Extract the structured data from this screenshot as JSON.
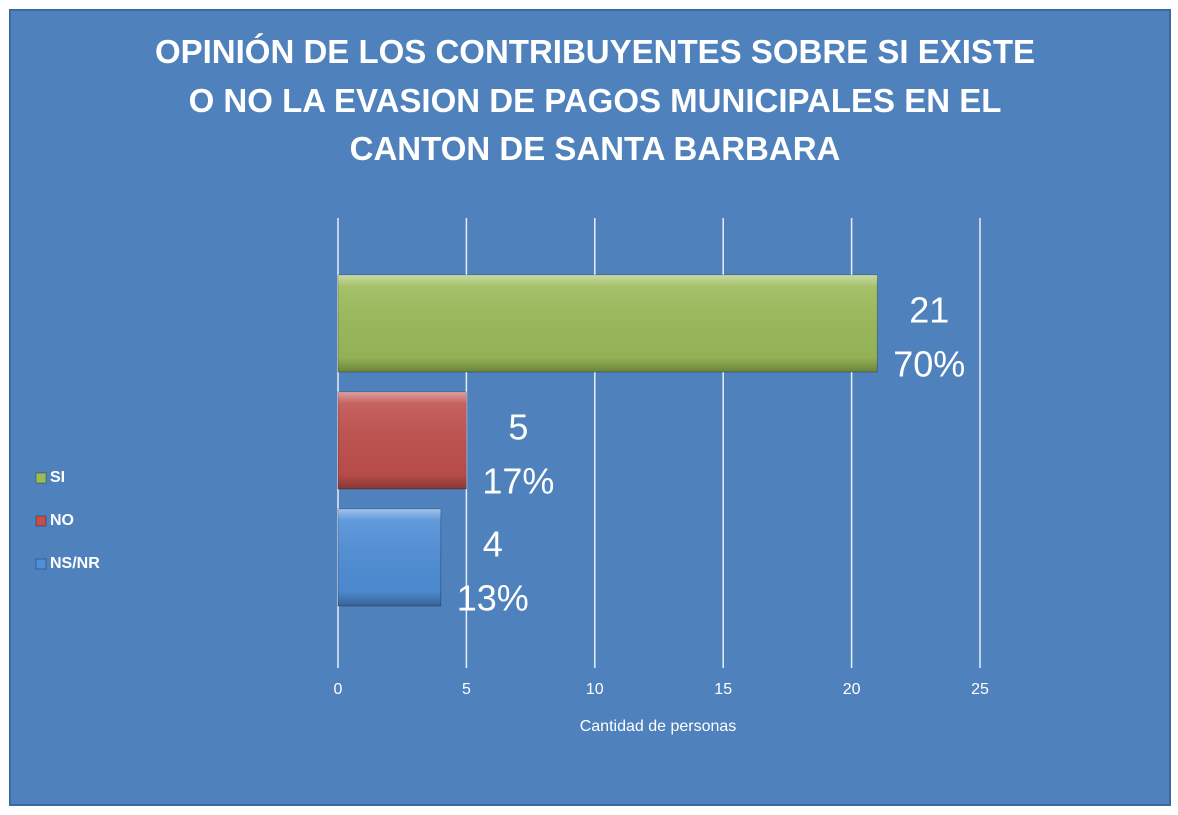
{
  "chart_data": {
    "type": "hbar",
    "title": "OPINIÓN DE LOS CONTRIBUYENTES SOBRE SI EXISTE O NO LA EVASION DE PAGOS MUNICIPALES EN EL CANTON DE SANTA BARBARA",
    "xlabel": "Cantidad de personas",
    "categories": [
      "SI",
      "NO",
      "NS/NR"
    ],
    "values": [
      21,
      5,
      4
    ],
    "percent_labels": [
      "70%",
      "17%",
      "13%"
    ],
    "colors": [
      "#9bbb59",
      "#c0504d",
      "#4f8fd8"
    ],
    "xlim": [
      0,
      25
    ],
    "xticks": [
      0,
      5,
      10,
      15,
      20,
      25
    ],
    "grid": true,
    "legend": "left"
  }
}
